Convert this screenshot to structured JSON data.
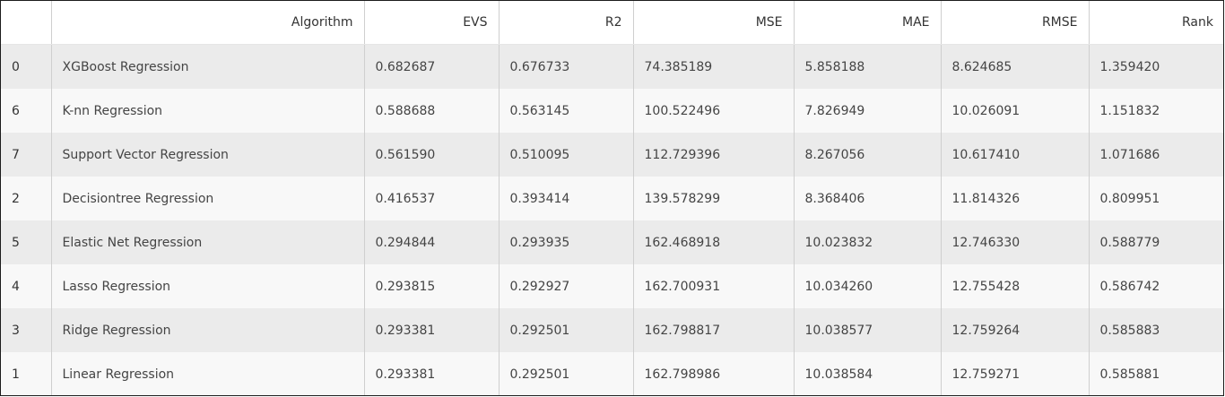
{
  "table": {
    "columns": [
      "",
      "Algorithm",
      "EVS",
      "R2",
      "MSE",
      "MAE",
      "RMSE",
      "Rank"
    ],
    "rows": [
      [
        "0",
        "XGBoost Regression",
        "0.682687",
        "0.676733",
        "74.385189",
        "5.858188",
        "8.624685",
        "1.359420"
      ],
      [
        "6",
        "K-nn Regression",
        "0.588688",
        "0.563145",
        "100.522496",
        "7.826949",
        "10.026091",
        "1.151832"
      ],
      [
        "7",
        "Support Vector Regression",
        "0.561590",
        "0.510095",
        "112.729396",
        "8.267056",
        "10.617410",
        "1.071686"
      ],
      [
        "2",
        "Decisiontree Regression",
        "0.416537",
        "0.393414",
        "139.578299",
        "8.368406",
        "11.814326",
        "0.809951"
      ],
      [
        "5",
        "Elastic Net Regression",
        "0.294844",
        "0.293935",
        "162.468918",
        "10.023832",
        "12.746330",
        "0.588779"
      ],
      [
        "4",
        "Lasso Regression",
        "0.293815",
        "0.292927",
        "162.700931",
        "10.034260",
        "12.755428",
        "0.586742"
      ],
      [
        "3",
        "Ridge Regression",
        "0.293381",
        "0.292501",
        "162.798817",
        "10.038577",
        "12.759264",
        "0.585883"
      ],
      [
        "1",
        "Linear Regression",
        "0.293381",
        "0.292501",
        "162.798986",
        "10.038584",
        "12.759271",
        "0.585881"
      ]
    ]
  }
}
